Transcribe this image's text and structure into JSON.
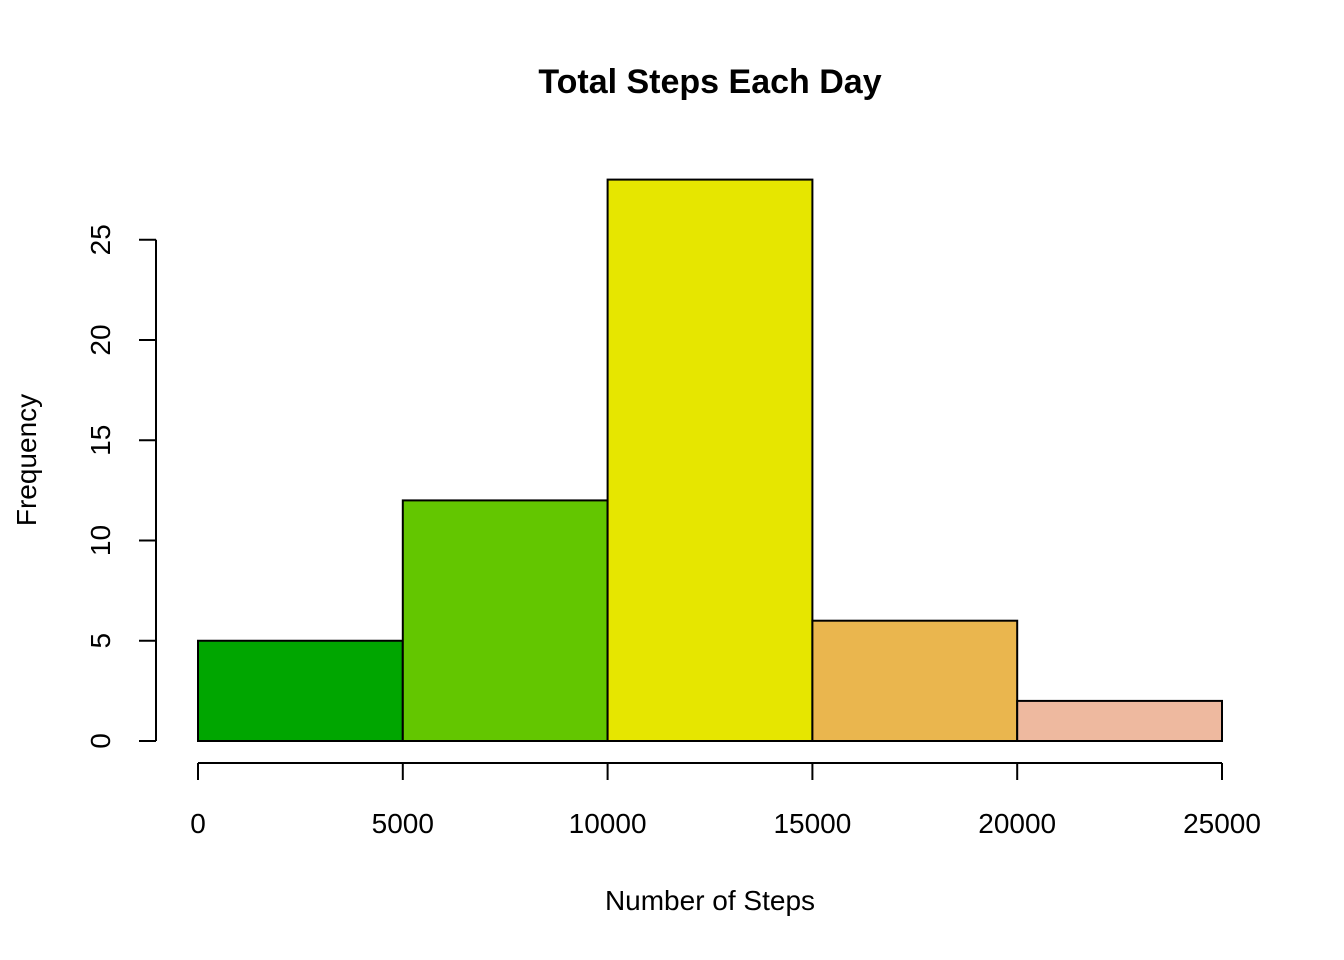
{
  "chart_data": {
    "type": "bar",
    "title": "Total Steps Each Day",
    "xlabel": "Number of Steps",
    "ylabel": "Frequency",
    "bins": [
      {
        "from": 0,
        "to": 5000,
        "count": 5,
        "color": "#00A600"
      },
      {
        "from": 5000,
        "to": 10000,
        "count": 12,
        "color": "#63C600"
      },
      {
        "from": 10000,
        "to": 15000,
        "count": 28,
        "color": "#E6E600"
      },
      {
        "from": 15000,
        "to": 20000,
        "count": 6,
        "color": "#EAB64E"
      },
      {
        "from": 20000,
        "to": 25000,
        "count": 2,
        "color": "#EEB99F"
      }
    ],
    "x_ticks": [
      "0",
      "5000",
      "10000",
      "15000",
      "20000",
      "25000"
    ],
    "y_ticks": [
      "0",
      "5",
      "10",
      "15",
      "20",
      "25"
    ],
    "xlim": [
      0,
      25000
    ],
    "ylim": [
      0,
      28
    ],
    "grid": false
  }
}
